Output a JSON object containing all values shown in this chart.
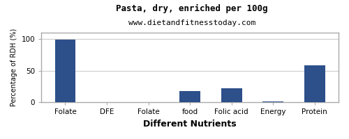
{
  "title": "Pasta, dry, enriched per 100g",
  "subtitle": "www.dietandfitnesstoday.com",
  "xlabel": "Different Nutrients",
  "ylabel": "Percentage of RDH (%)",
  "categories": [
    "Folate",
    "DFE",
    "Folate",
    "food",
    "Folic acid",
    "Energy",
    "Protein"
  ],
  "values": [
    99,
    0.5,
    0.5,
    18,
    22,
    2,
    58
  ],
  "bar_color": "#2d4f8a",
  "ylim": [
    0,
    110
  ],
  "yticks": [
    0,
    50,
    100
  ],
  "background_color": "#ffffff",
  "plot_bg_color": "#ffffff",
  "border_color": "#aaaaaa",
  "grid_color": "#cccccc",
  "title_fontsize": 9,
  "subtitle_fontsize": 8,
  "xlabel_fontsize": 9,
  "ylabel_fontsize": 7,
  "tick_fontsize": 7.5
}
